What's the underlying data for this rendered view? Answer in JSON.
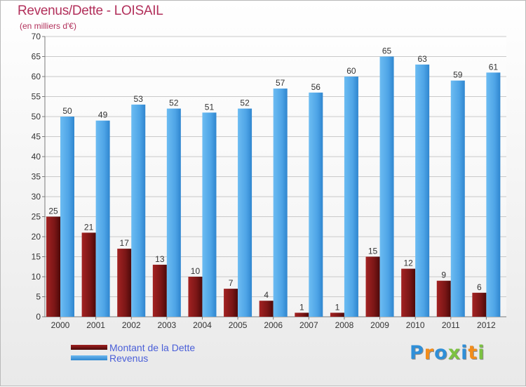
{
  "title": "Revenus/Dette - LOISAIL",
  "subtitle": "(en milliers d'€)",
  "logo": {
    "text": "Proxiti",
    "colors": [
      "#2f8fd8",
      "#f28c1a",
      "#2f8fd8",
      "#7cc242",
      "#2f8fd8",
      "#f28c1a",
      "#7cc242"
    ]
  },
  "chart_data": {
    "type": "bar",
    "categories": [
      "2000",
      "2001",
      "2002",
      "2003",
      "2004",
      "2005",
      "2006",
      "2007",
      "2008",
      "2009",
      "2010",
      "2011",
      "2012"
    ],
    "series": [
      {
        "name": "Montant de la Dette",
        "color": "#7a1616",
        "values": [
          25,
          21,
          17,
          13,
          10,
          7,
          4,
          1,
          1,
          15,
          12,
          9,
          6
        ]
      },
      {
        "name": "Revenus",
        "color": "#4ea4e6",
        "values": [
          50,
          49,
          53,
          52,
          51,
          52,
          57,
          56,
          60,
          65,
          63,
          59,
          61
        ]
      }
    ],
    "ylim": [
      0,
      70
    ],
    "yticks": [
      0,
      5,
      10,
      15,
      20,
      25,
      30,
      35,
      40,
      45,
      50,
      55,
      60,
      65,
      70
    ],
    "grid": true,
    "legend_position": "bottom-left"
  }
}
